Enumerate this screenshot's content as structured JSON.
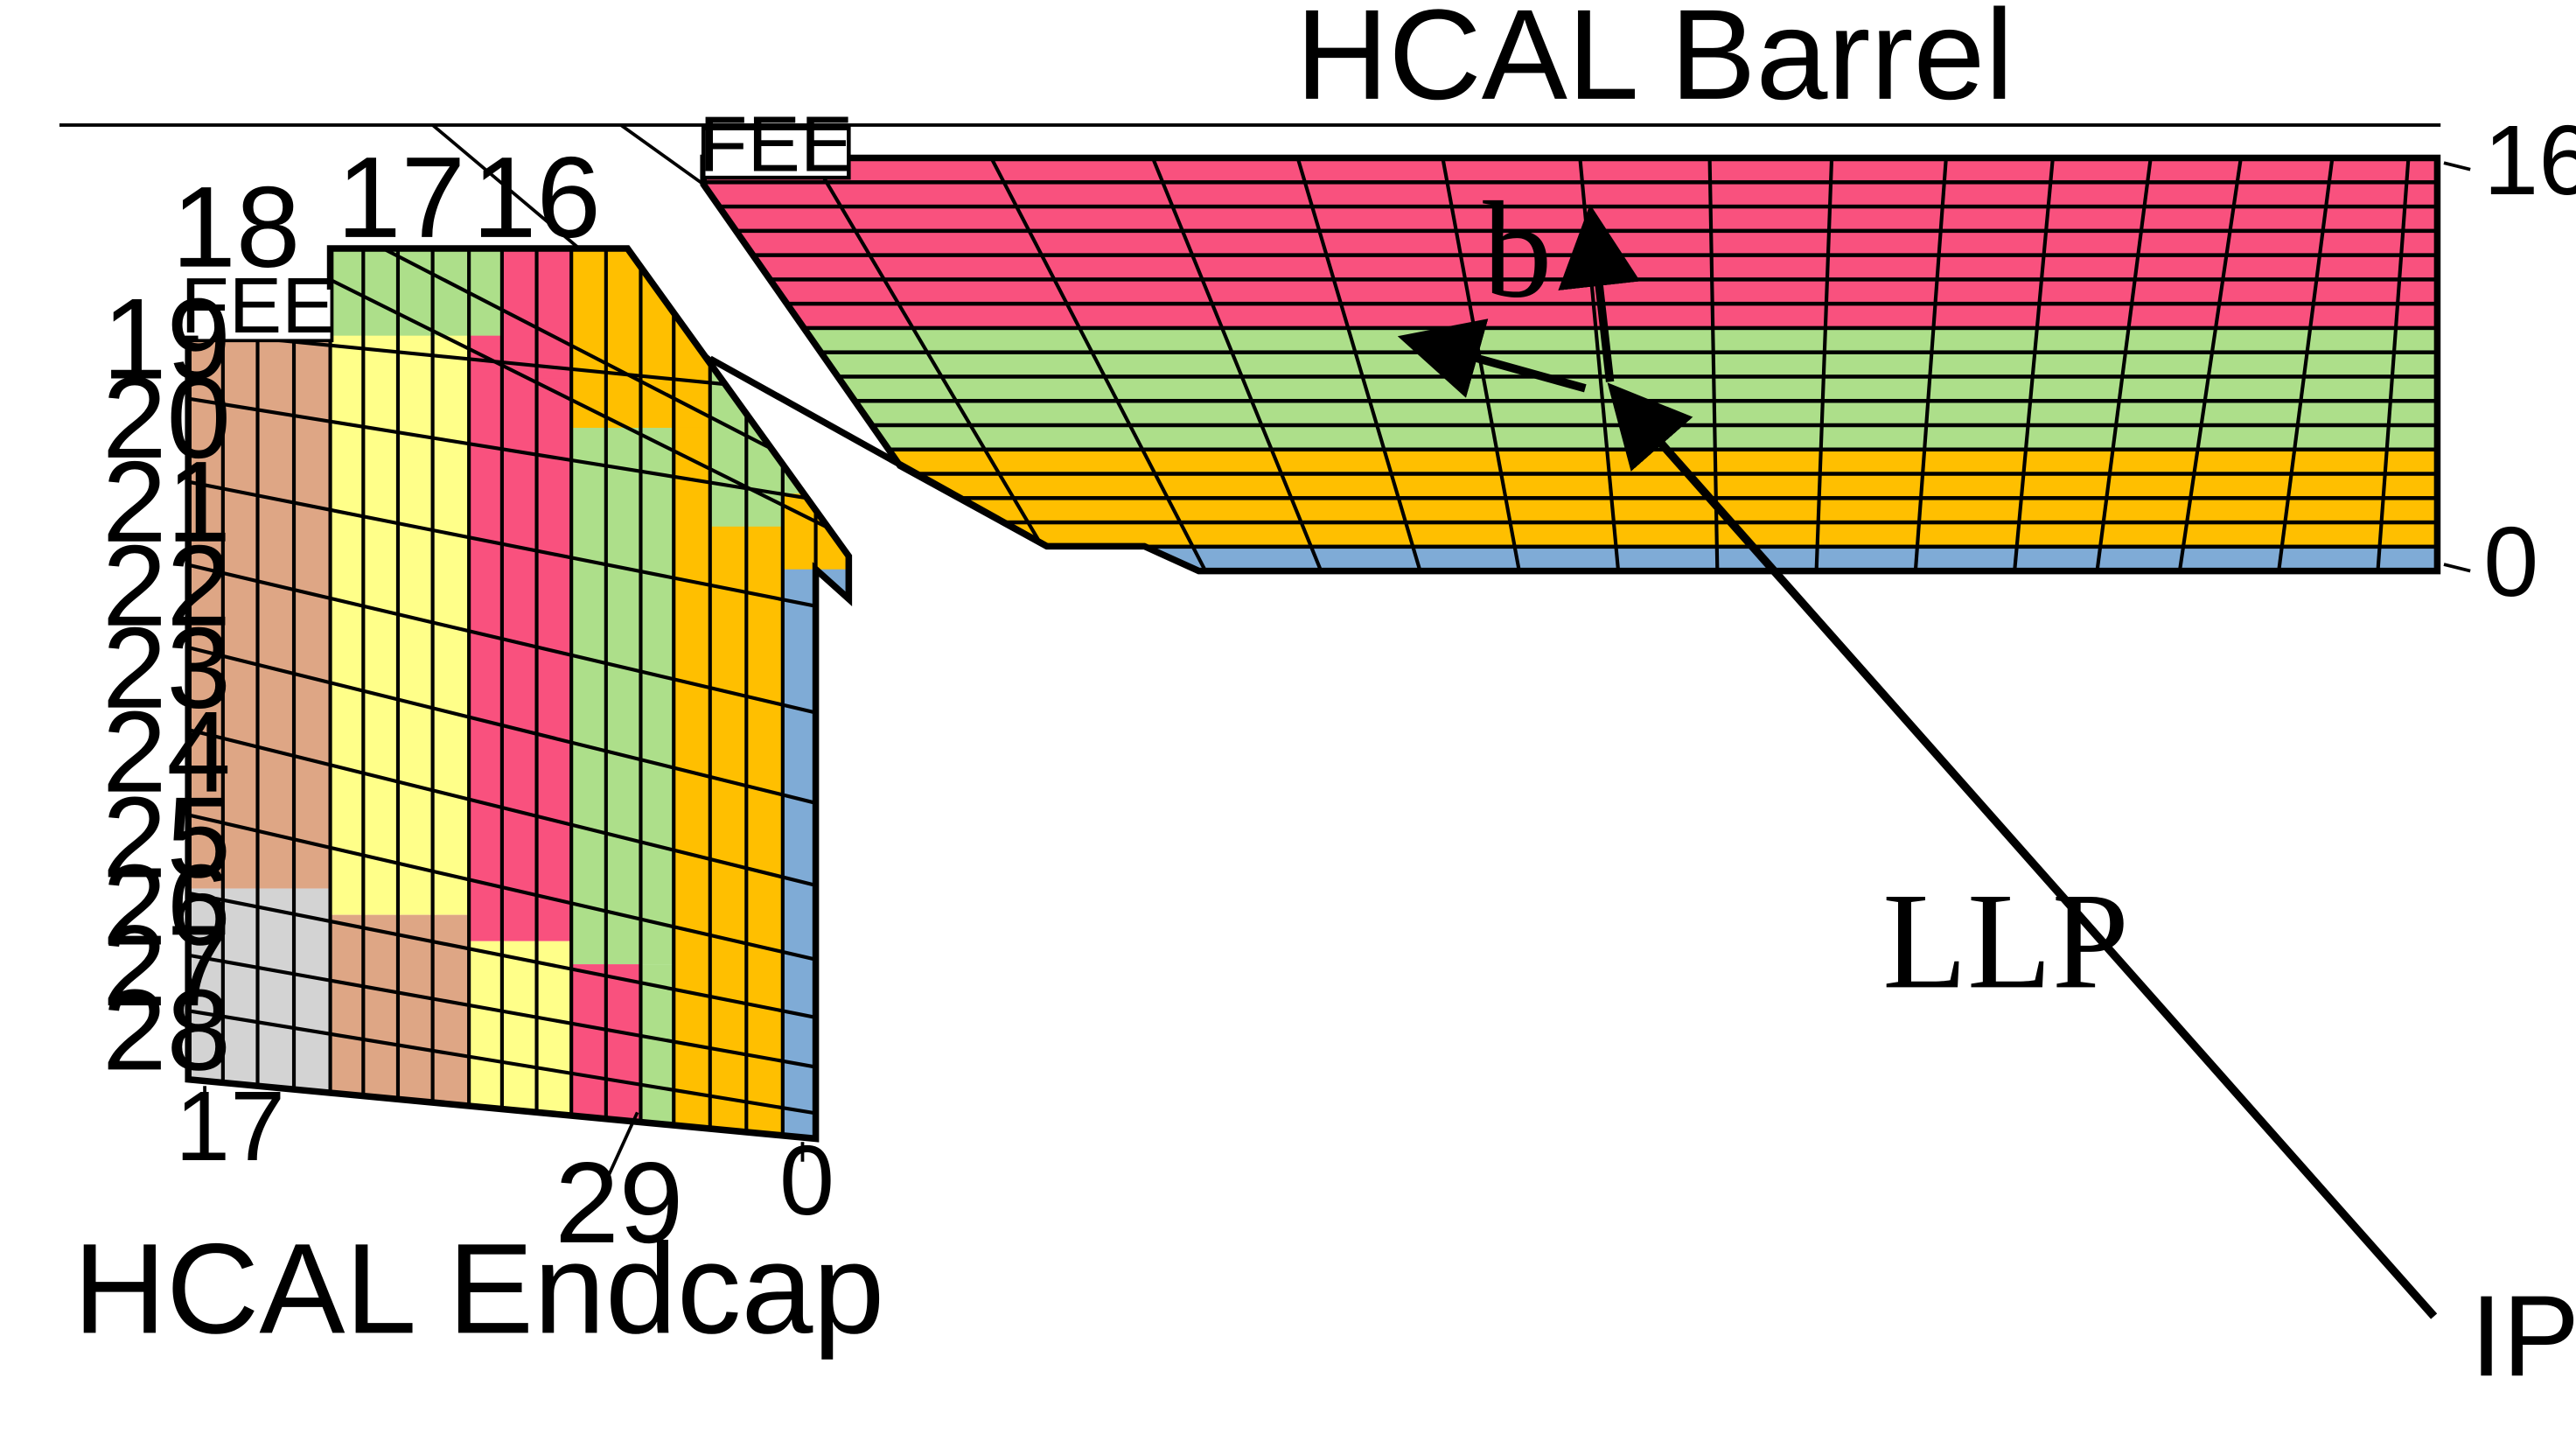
{
  "labels": {
    "barrel_title": "HCAL Barrel",
    "endcap_title": "HCAL Endcap",
    "barrel_fee": "FEE",
    "endcap_fee": "FEE",
    "barrel_depth_top": "16",
    "barrel_depth_bottom": "0",
    "endcap_bottom_left": "17",
    "endcap_bottom_mid": "29",
    "endcap_bottom_right": "0",
    "endcap_top": [
      "18",
      "17",
      "16"
    ],
    "endcap_tower_index": [
      "19",
      "20",
      "21",
      "22",
      "23",
      "24",
      "25",
      "26",
      "27",
      "28"
    ],
    "llp": "LLP",
    "b": "b",
    "ip": "IP"
  },
  "colors": {
    "pink": "#f9517e",
    "green": "#addf8a",
    "yellow": "#ffbf00",
    "blue": "#7fabd6",
    "tan": "#dea685",
    "lightyellow": "#ffff89",
    "gray": "#d3d3d3"
  },
  "barrel_layers": [
    {
      "color": "pink",
      "count": 7
    },
    {
      "color": "green",
      "count": 5
    },
    {
      "color": "yellow",
      "count": 4
    },
    {
      "color": "blue",
      "count": 1
    }
  ]
}
